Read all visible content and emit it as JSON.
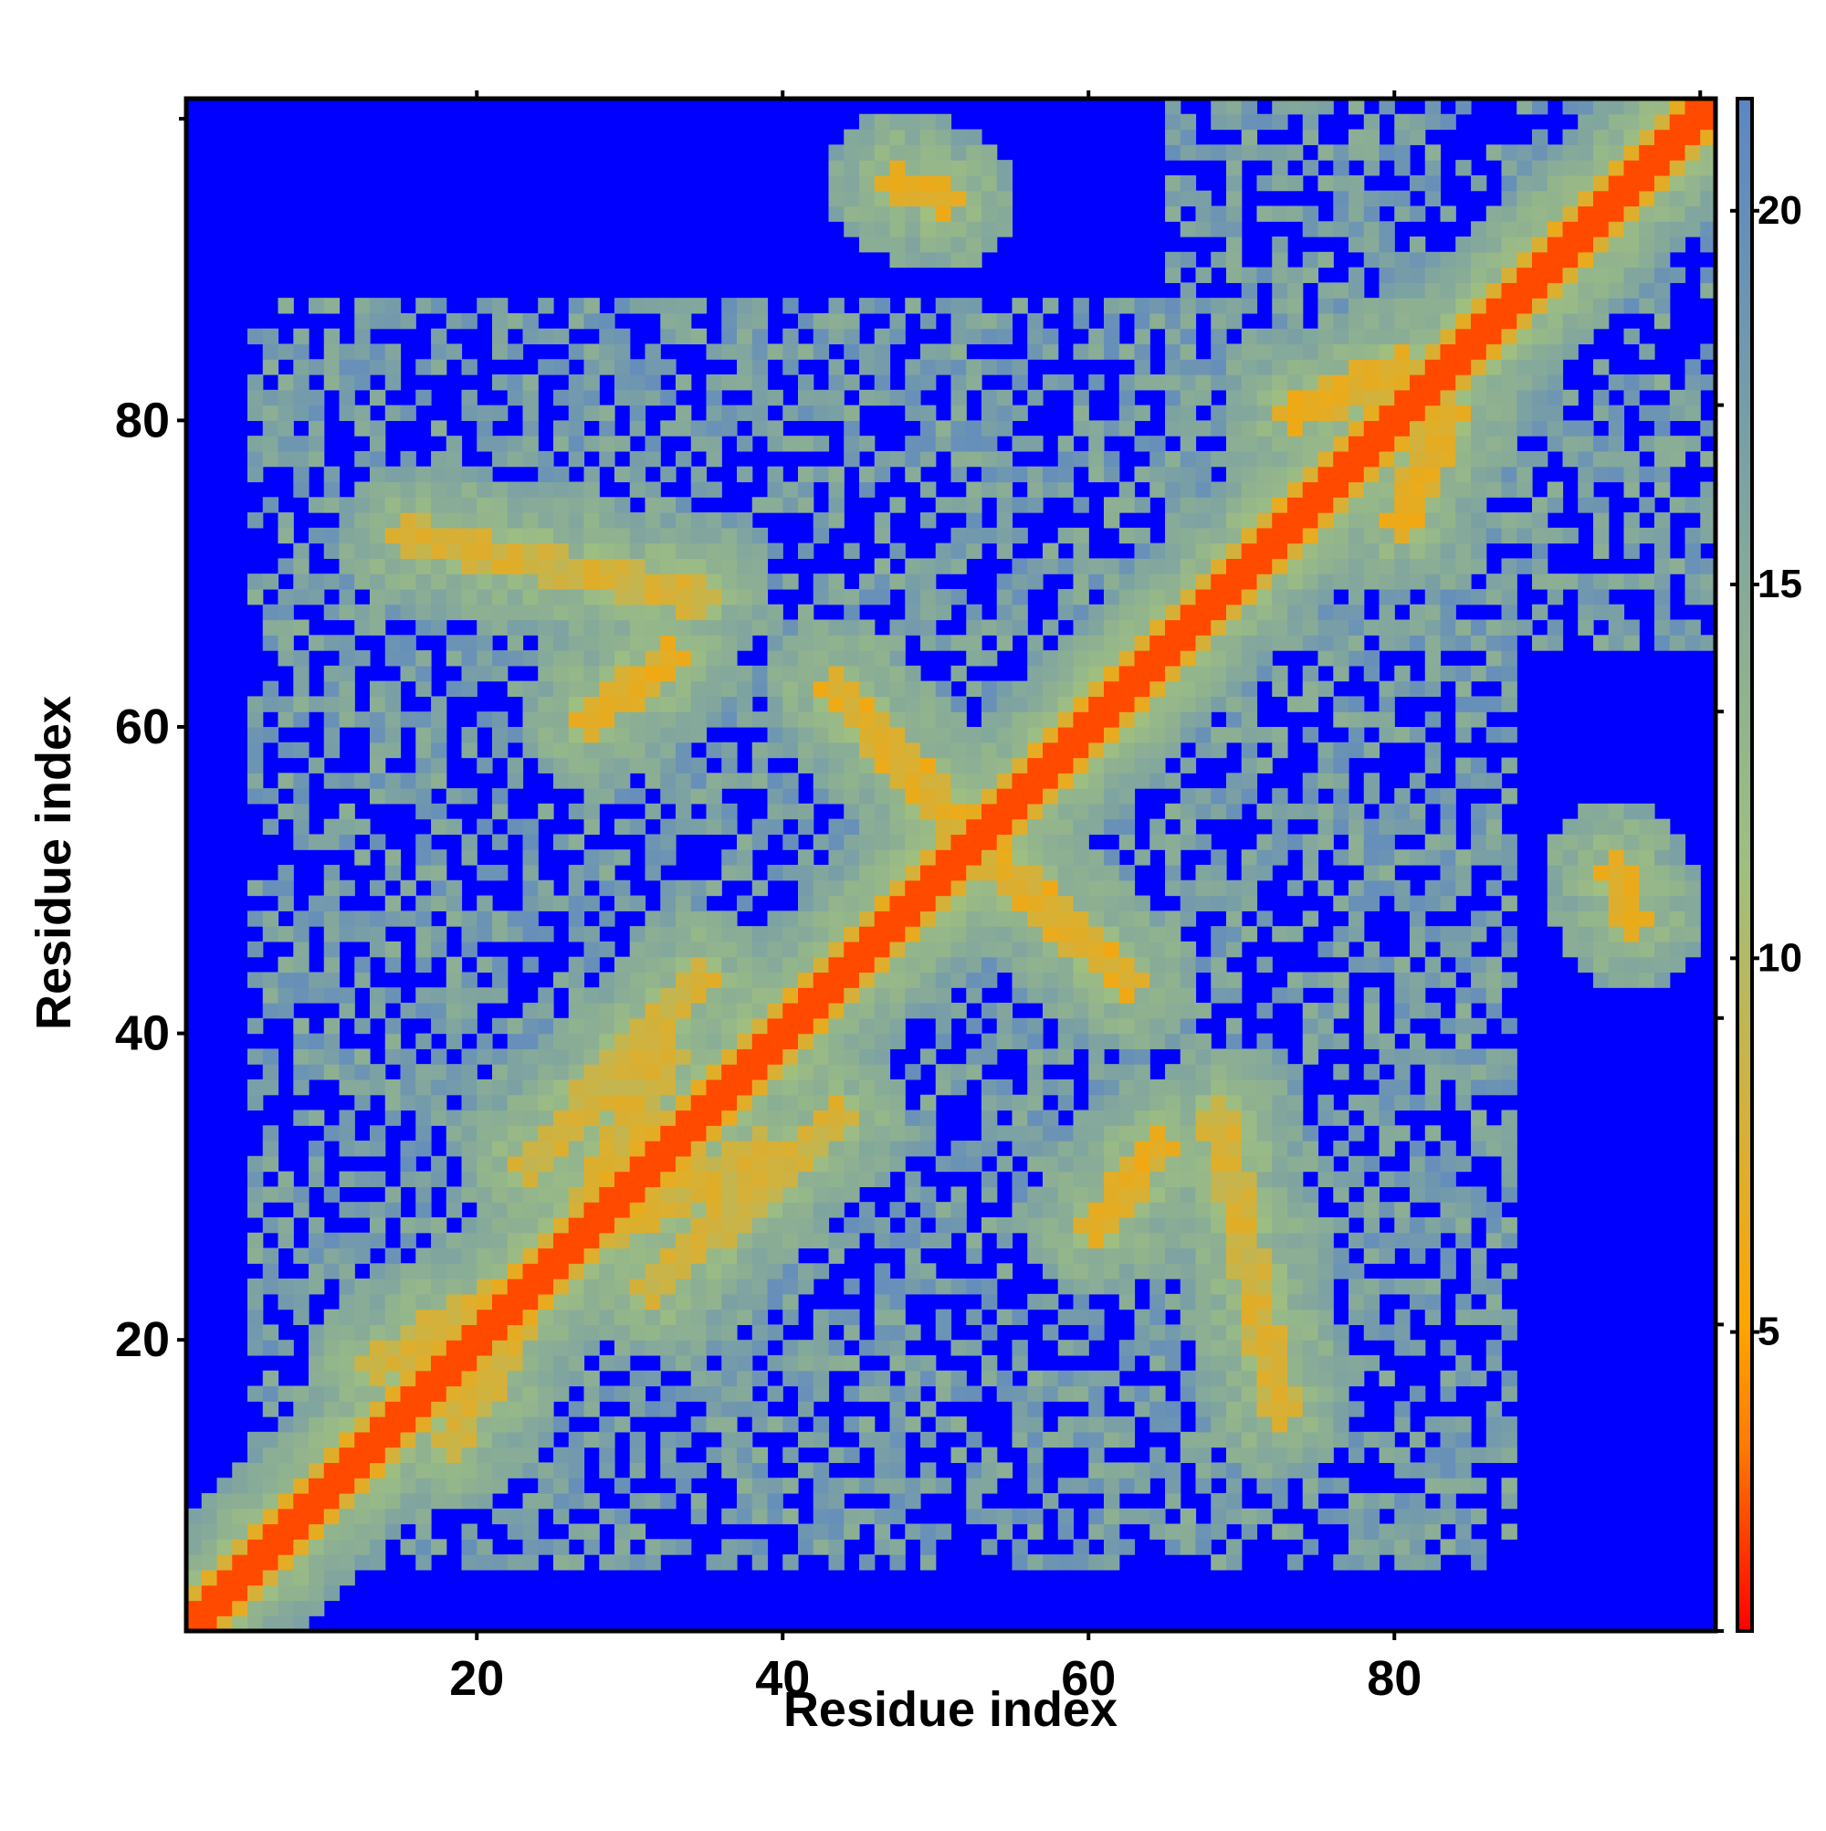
{
  "chart_data": {
    "type": "heatmap",
    "title": "",
    "xlabel": "Residue index",
    "ylabel": "Residue index",
    "xlim": [
      1,
      101
    ],
    "ylim": [
      1,
      101
    ],
    "x_ticks": [
      20,
      40,
      60,
      80
    ],
    "y_ticks": [
      20,
      40,
      60,
      80
    ],
    "x_minor_ticks": [
      20,
      40,
      60,
      80,
      100
    ],
    "y_minor_ticks": [
      1,
      21,
      41,
      61,
      81
    ],
    "colorbar": {
      "range": [
        1,
        21.5
      ],
      "ticks": [
        5,
        10,
        15,
        20
      ],
      "palette": [
        "#ff0000",
        "#ff7a00",
        "#ffa500",
        "#9fbf80",
        "#5c86c4",
        "#0000ff"
      ],
      "palette_stops": [
        0,
        12,
        20,
        50,
        100,
        100
      ]
    },
    "saturation_color": "#0000ff",
    "matrix_note_symmetric": true,
    "features": [
      {
        "type": "diagonal",
        "half_width": 3
      },
      {
        "type": "band",
        "from": [
          13,
          18
        ],
        "to": [
          38,
          32
        ],
        "value": 7
      },
      {
        "type": "band",
        "from": [
          23,
          31
        ],
        "to": [
          34,
          43
        ],
        "value": 7
      },
      {
        "type": "band",
        "from": [
          43,
          62
        ],
        "to": [
          52,
          52
        ],
        "value": 6
      },
      {
        "type": "band",
        "from": [
          27,
          60
        ],
        "to": [
          32,
          64
        ],
        "value": 6
      },
      {
        "type": "band",
        "from": [
          15,
          72
        ],
        "to": [
          34,
          68
        ],
        "value": 7
      },
      {
        "type": "band",
        "from": [
          47,
          95
        ],
        "to": [
          50,
          94
        ],
        "value": 6
      },
      {
        "type": "band",
        "from": [
          73,
          80
        ],
        "to": [
          80,
          83
        ],
        "value": 6
      },
      {
        "type": "region",
        "x": [
          7,
          86
        ],
        "y": [
          5,
          87
        ],
        "value": 14
      },
      {
        "type": "region",
        "x": [
          65,
          100
        ],
        "y": [
          70,
          101
        ],
        "value": 14
      }
    ]
  }
}
